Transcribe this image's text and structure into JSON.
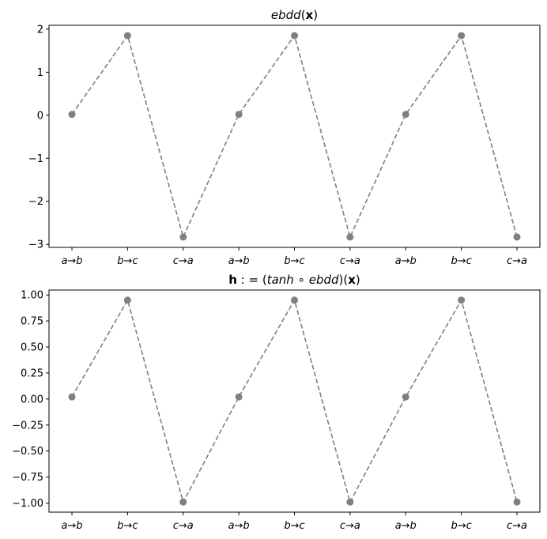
{
  "charts": [
    {
      "title_parts": [
        {
          "t": "ebdd",
          "s": "it"
        },
        {
          "t": "(",
          "s": ""
        },
        {
          "t": "x",
          "s": "bold"
        },
        {
          "t": ")",
          "s": ""
        }
      ]
    },
    {
      "title_parts": [
        {
          "t": "h",
          "s": "bold"
        },
        {
          "t": " : = (",
          "s": ""
        },
        {
          "t": "tanh",
          "s": "it"
        },
        {
          "t": " ∘ ",
          "s": ""
        },
        {
          "t": "ebdd",
          "s": "it"
        },
        {
          "t": ")(",
          "s": ""
        },
        {
          "t": "x",
          "s": "bold"
        },
        {
          "t": ")",
          "s": ""
        }
      ]
    }
  ],
  "chart_data": [
    {
      "type": "line",
      "title": "ebdd(x)",
      "xlabel": "",
      "ylabel": "",
      "categories": [
        "a→b",
        "b→c",
        "c→a",
        "a→b",
        "b→c",
        "c→a",
        "a→b",
        "b→c",
        "c→a"
      ],
      "series": [
        {
          "values": [
            0.02,
            1.85,
            -2.83,
            0.02,
            1.85,
            -2.83,
            0.02,
            1.85,
            -2.83
          ],
          "color": "#808080",
          "linestyle": "dashed",
          "marker": "circle"
        }
      ],
      "yticks": [
        -3,
        -2,
        -1,
        0,
        1,
        2
      ],
      "ytick_labels": [
        "−3",
        "−2",
        "−1",
        "0",
        "1",
        "2"
      ],
      "ylim": [
        -3.07,
        2.09
      ],
      "grid": false
    },
    {
      "type": "line",
      "title": "h : = (tanh ∘ ebdd)(x)",
      "xlabel": "",
      "ylabel": "",
      "categories": [
        "a→b",
        "b→c",
        "c→a",
        "a→b",
        "b→c",
        "c→a",
        "a→b",
        "b→c",
        "c→a"
      ],
      "series": [
        {
          "values": [
            0.02,
            0.95,
            -0.99,
            0.02,
            0.95,
            -0.99,
            0.02,
            0.95,
            -0.99
          ],
          "color": "#808080",
          "linestyle": "dashed",
          "marker": "circle"
        }
      ],
      "yticks": [
        -1.0,
        -0.75,
        -0.5,
        -0.25,
        0.0,
        0.25,
        0.5,
        0.75,
        1.0
      ],
      "ytick_labels": [
        "−1.00",
        "−0.75",
        "−0.50",
        "−0.25",
        "0.00",
        "0.25",
        "0.50",
        "0.75",
        "1.00"
      ],
      "ylim": [
        -1.087,
        1.047
      ],
      "grid": false
    }
  ]
}
